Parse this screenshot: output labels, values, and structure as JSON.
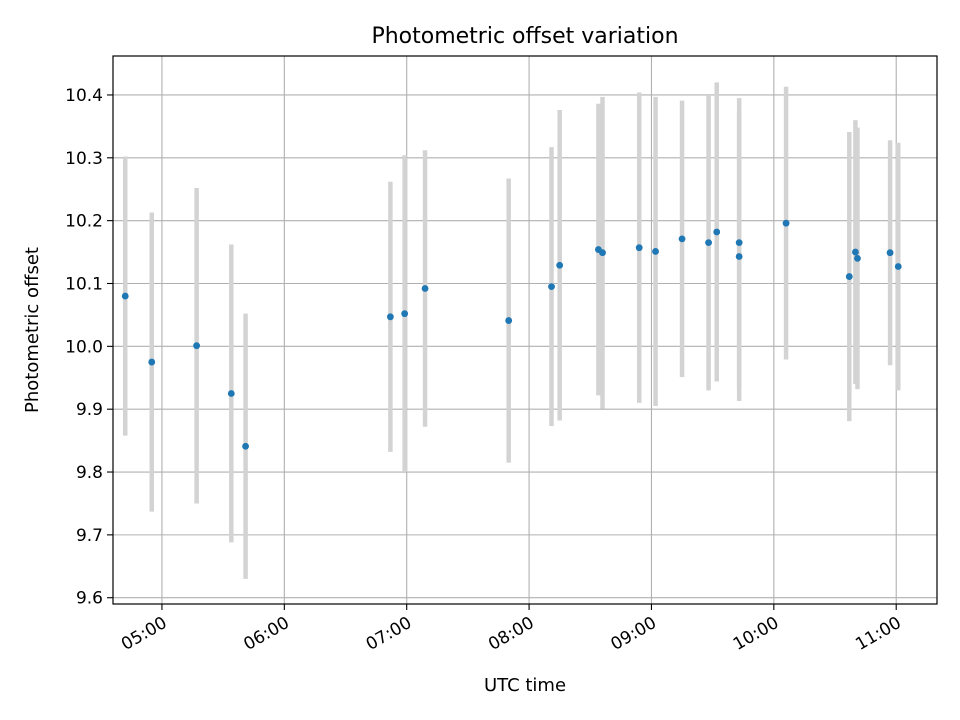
{
  "chart_data": {
    "type": "scatter",
    "title": "Photometric offset variation",
    "xlabel": "UTC time",
    "ylabel": "Photometric offset",
    "xlim": [
      "04:36",
      "11:20"
    ],
    "ylim": [
      9.59,
      10.462
    ],
    "grid": true,
    "x_ticks": [
      "05:00",
      "06:00",
      "07:00",
      "08:00",
      "09:00",
      "10:00",
      "11:00"
    ],
    "y_ticks": [
      9.6,
      9.7,
      9.8,
      9.9,
      10.0,
      10.1,
      10.2,
      10.3,
      10.4
    ],
    "y_tick_labels": [
      "9.6",
      "9.7",
      "9.8",
      "9.9",
      "10.0",
      "10.1",
      "10.2",
      "10.3",
      "10.4"
    ],
    "points": [
      {
        "x": "04:42",
        "y": 10.08,
        "yerr": 0.222
      },
      {
        "x": "04:55",
        "y": 9.975,
        "yerr": 0.238
      },
      {
        "x": "05:17",
        "y": 10.001,
        "yerr": 0.251
      },
      {
        "x": "05:34",
        "y": 9.925,
        "yerr": 0.237
      },
      {
        "x": "05:41",
        "y": 9.841,
        "yerr": 0.211
      },
      {
        "x": "06:52",
        "y": 10.047,
        "yerr": 0.215
      },
      {
        "x": "06:59",
        "y": 10.052,
        "yerr": 0.252
      },
      {
        "x": "07:09",
        "y": 10.092,
        "yerr": 0.22
      },
      {
        "x": "07:50",
        "y": 10.041,
        "yerr": 0.226
      },
      {
        "x": "08:11",
        "y": 10.095,
        "yerr": 0.222
      },
      {
        "x": "08:15",
        "y": 10.129,
        "yerr": 0.247
      },
      {
        "x": "08:34",
        "y": 10.154,
        "yerr": 0.232
      },
      {
        "x": "08:36",
        "y": 10.149,
        "yerr": 0.248
      },
      {
        "x": "08:54",
        "y": 10.157,
        "yerr": 0.247
      },
      {
        "x": "09:02",
        "y": 10.151,
        "yerr": 0.246
      },
      {
        "x": "09:15",
        "y": 10.171,
        "yerr": 0.22
      },
      {
        "x": "09:28",
        "y": 10.165,
        "yerr": 0.235
      },
      {
        "x": "09:32",
        "y": 10.182,
        "yerr": 0.238
      },
      {
        "x": "09:43",
        "y": 10.165,
        "yerr": 0.23
      },
      {
        "x": "09:43",
        "y": 10.143,
        "yerr": 0.23
      },
      {
        "x": "10:06",
        "y": 10.196,
        "yerr": 0.217
      },
      {
        "x": "10:37",
        "y": 10.111,
        "yerr": 0.23
      },
      {
        "x": "10:40",
        "y": 10.15,
        "yerr": 0.21
      },
      {
        "x": "10:41",
        "y": 10.14,
        "yerr": 0.208
      },
      {
        "x": "10:57",
        "y": 10.149,
        "yerr": 0.179
      },
      {
        "x": "11:01",
        "y": 10.127,
        "yerr": 0.197
      }
    ],
    "colors": {
      "marker": "#1f77b4",
      "errorbar": "#d3d3d3",
      "grid": "#b0b0b0"
    }
  }
}
